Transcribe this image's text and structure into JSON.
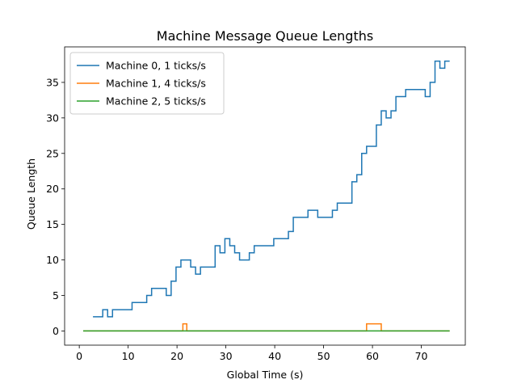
{
  "chart_data": {
    "type": "line",
    "step": "post",
    "title": "Machine Message Queue Lengths",
    "xlabel": "Global Time (s)",
    "ylabel": "Queue Length",
    "xlim": [
      -3,
      79
    ],
    "ylim": [
      -2,
      40
    ],
    "xticks": [
      0,
      10,
      20,
      30,
      40,
      50,
      60,
      70
    ],
    "yticks": [
      0,
      5,
      10,
      15,
      20,
      25,
      30,
      35
    ],
    "grid": false,
    "legend_position": "top-left",
    "series": [
      {
        "name": "Machine 0, 1 ticks/s",
        "color": "#1f77b4",
        "x": [
          2.8,
          4.8,
          5.8,
          6.8,
          10.8,
          13.8,
          14.8,
          17.8,
          18.8,
          19.8,
          20.8,
          22.8,
          23.8,
          24.8,
          27.8,
          28.8,
          29.8,
          30.8,
          31.8,
          32.8,
          34.8,
          35.8,
          39.8,
          42.8,
          43.8,
          46.8,
          48.8,
          51.8,
          52.8,
          55.8,
          56.8,
          57.8,
          58.8,
          60.8,
          61.8,
          62.8,
          63.8,
          64.8,
          66.8,
          70.8,
          71.8,
          72.8,
          73.8,
          74.8,
          75.8
        ],
        "y": [
          2,
          3,
          2,
          3,
          4,
          5,
          6,
          5,
          7,
          9,
          10,
          9,
          8,
          9,
          12,
          11,
          13,
          12,
          11,
          10,
          11,
          12,
          13,
          14,
          16,
          17,
          16,
          17,
          18,
          21,
          22,
          25,
          26,
          29,
          31,
          30,
          31,
          33,
          34,
          33,
          35,
          38,
          37,
          38,
          38
        ]
      },
      {
        "name": "Machine 1, 4 ticks/s",
        "color": "#ff7f0e",
        "x": [
          0.8,
          21.2,
          22.0,
          58.8,
          61.8,
          75.8
        ],
        "y": [
          0,
          1,
          0,
          1,
          0,
          0
        ]
      },
      {
        "name": "Machine 2, 5 ticks/s",
        "color": "#2ca02c",
        "x": [
          0.8,
          75.8
        ],
        "y": [
          0,
          0
        ]
      }
    ]
  }
}
